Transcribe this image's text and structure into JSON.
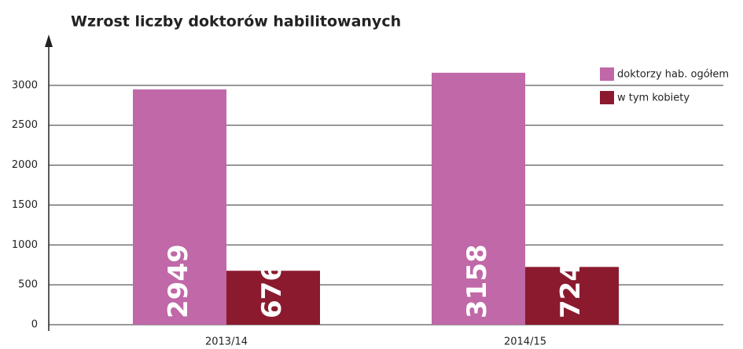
{
  "chart_data": {
    "type": "bar",
    "title": "Wzrost liczby doktorów habilitowanych",
    "categories": [
      "2013/14",
      "2014/15"
    ],
    "series": [
      {
        "name": "doktorzy hab. ogółem",
        "color": "#c068a8",
        "values": [
          2949,
          3158
        ]
      },
      {
        "name": "w tym kobiety",
        "color": "#8b1a2e",
        "values": [
          676,
          724
        ]
      }
    ],
    "ylim": [
      0,
      3500
    ],
    "yticks": [
      0,
      500,
      1000,
      1500,
      2000,
      2500,
      3000
    ],
    "grid": true,
    "legend": "top-right"
  }
}
